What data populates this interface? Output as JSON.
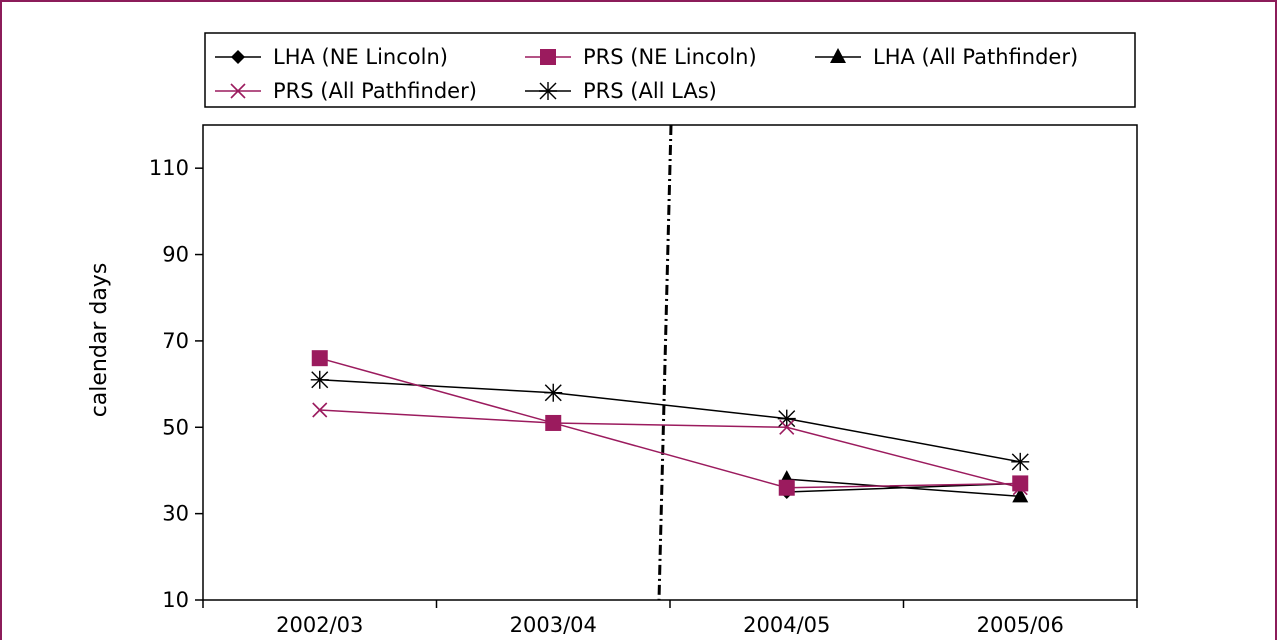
{
  "chart_data": {
    "type": "line",
    "ylabel": "calendar days",
    "xlabel": "",
    "categories": [
      "2002/03",
      "2003/04",
      "2004/05",
      "2005/06"
    ],
    "ylim": [
      10,
      120
    ],
    "yticks": [
      10,
      30,
      50,
      70,
      90,
      110
    ],
    "policy_change_between": [
      "2003/04",
      "2004/05"
    ],
    "legend_placement": "top",
    "series": [
      {
        "name": "LHA (NE Lincoln)",
        "marker": "diamond",
        "color": "#000000",
        "values": [
          null,
          null,
          35,
          37
        ]
      },
      {
        "name": "PRS (NE Lincoln)",
        "marker": "square",
        "color": "#9b1b5e",
        "values": [
          66,
          51,
          36,
          37
        ]
      },
      {
        "name": "LHA (All Pathfinder)",
        "marker": "triangle",
        "color": "#000000",
        "values": [
          null,
          null,
          38,
          34
        ]
      },
      {
        "name": "PRS (All Pathfinder)",
        "marker": "x",
        "color": "#9b1b5e",
        "values": [
          54,
          51,
          50,
          36
        ]
      },
      {
        "name": "PRS (All LAs)",
        "marker": "asterisk",
        "color": "#000000",
        "values": [
          61,
          58,
          52,
          42
        ]
      }
    ]
  }
}
